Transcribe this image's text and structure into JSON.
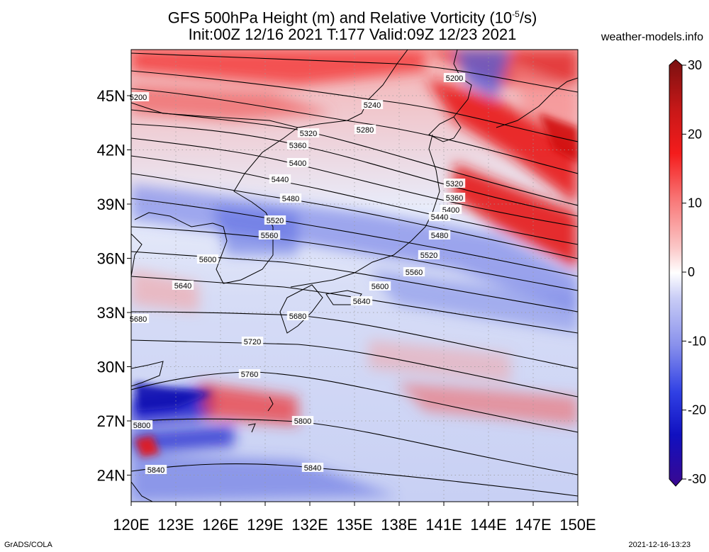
{
  "title": {
    "line1": "GFS 500hPa Height (m) and Relative Vorticity (10",
    "line1_sup": "-5",
    "line1_tail": "/s)",
    "line2": "Init:00Z 12/16 2021 T:177 Valid:09Z 12/23 2021"
  },
  "source": "weather-models.info",
  "footer": {
    "left": "GrADS/COLA",
    "right": "2021-12-16-13:23"
  },
  "map": {
    "lon_labels": [
      "120E",
      "123E",
      "126E",
      "129E",
      "132E",
      "135E",
      "138E",
      "141E",
      "144E",
      "147E",
      "150E"
    ],
    "lat_labels": [
      "45N",
      "42N",
      "39N",
      "36N",
      "33N",
      "30N",
      "27N",
      "24N"
    ]
  },
  "colorbar": {
    "tick_labels": [
      "30",
      "20",
      "10",
      "0",
      "-10",
      "-20",
      "-30"
    ],
    "colors": [
      "#7a1010",
      "#c81818",
      "#f41c1c",
      "#f87878",
      "#fbc6c6",
      "#ffffff",
      "#c8ccf6",
      "#8890ec",
      "#3040e4",
      "#1010c0",
      "#3a0890"
    ]
  },
  "contours": [
    {
      "label": "5200"
    },
    {
      "label": "5240"
    },
    {
      "label": "5280"
    },
    {
      "label": "5320"
    },
    {
      "label": "5360"
    },
    {
      "label": "5400"
    },
    {
      "label": "5440"
    },
    {
      "label": "5480"
    },
    {
      "label": "5520"
    },
    {
      "label": "5560"
    },
    {
      "label": "5600"
    },
    {
      "label": "5640"
    },
    {
      "label": "5680"
    },
    {
      "label": "5720"
    },
    {
      "label": "5760"
    },
    {
      "label": "5800"
    },
    {
      "label": "5840"
    }
  ]
}
